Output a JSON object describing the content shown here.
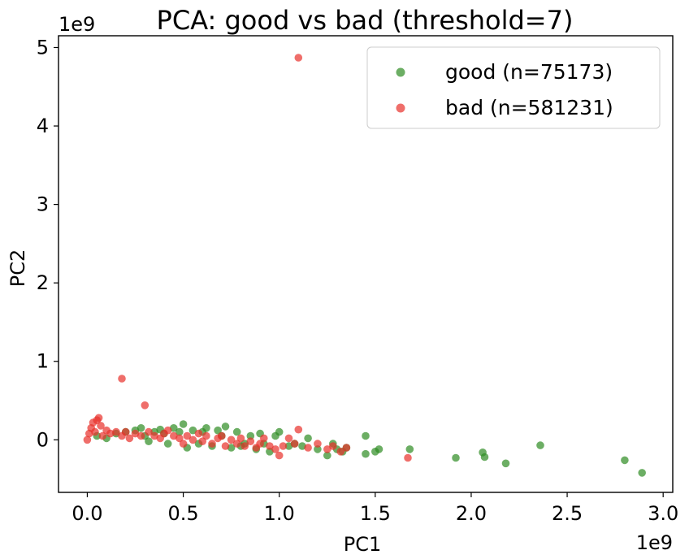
{
  "chart_data": {
    "type": "scatter",
    "title": "PCA: good vs bad (threshold=7)",
    "xlabel": "PC1",
    "ylabel": "PC2",
    "x_offset_label": "1e9",
    "y_offset_label": "1e9",
    "xlim": [
      -0.15,
      3.05
    ],
    "ylim": [
      -0.67,
      5.15
    ],
    "x_ticks": [
      0.0,
      0.5,
      1.0,
      1.5,
      2.0,
      2.5,
      3.0
    ],
    "x_tick_labels": [
      "0.0",
      "0.5",
      "1.0",
      "1.5",
      "2.0",
      "2.5",
      "3.0"
    ],
    "y_ticks": [
      0,
      1,
      2,
      3,
      4,
      5
    ],
    "y_tick_labels": [
      "0",
      "1",
      "2",
      "3",
      "4",
      "5"
    ],
    "grid": false,
    "legend_position": "top-right",
    "series": [
      {
        "name": "good (n=75173)",
        "color": "#2e8b22",
        "points": [
          [
            0.05,
            0.05
          ],
          [
            0.1,
            0.02
          ],
          [
            0.15,
            0.08
          ],
          [
            0.2,
            0.1
          ],
          [
            0.25,
            0.12
          ],
          [
            0.28,
            0.15
          ],
          [
            0.3,
            0.05
          ],
          [
            0.32,
            -0.02
          ],
          [
            0.35,
            0.1
          ],
          [
            0.38,
            0.13
          ],
          [
            0.4,
            0.08
          ],
          [
            0.42,
            -0.05
          ],
          [
            0.45,
            0.15
          ],
          [
            0.48,
            0.1
          ],
          [
            0.5,
            0.2
          ],
          [
            0.52,
            -0.1
          ],
          [
            0.55,
            0.12
          ],
          [
            0.58,
            -0.05
          ],
          [
            0.6,
            0.1
          ],
          [
            0.62,
            0.15
          ],
          [
            0.65,
            -0.08
          ],
          [
            0.68,
            0.12
          ],
          [
            0.7,
            0.05
          ],
          [
            0.72,
            0.17
          ],
          [
            0.75,
            -0.1
          ],
          [
            0.78,
            0.1
          ],
          [
            0.8,
            -0.08
          ],
          [
            0.82,
            -0.05
          ],
          [
            0.85,
            0.05
          ],
          [
            0.88,
            -0.12
          ],
          [
            0.9,
            0.08
          ],
          [
            0.92,
            -0.05
          ],
          [
            0.95,
            -0.15
          ],
          [
            0.98,
            0.05
          ],
          [
            1.0,
            0.1
          ],
          [
            1.05,
            -0.08
          ],
          [
            1.08,
            -0.05
          ],
          [
            1.12,
            -0.08
          ],
          [
            1.15,
            0.02
          ],
          [
            1.2,
            -0.12
          ],
          [
            1.25,
            -0.2
          ],
          [
            1.28,
            -0.05
          ],
          [
            1.3,
            -0.12
          ],
          [
            1.33,
            -0.15
          ],
          [
            1.35,
            -0.1
          ],
          [
            1.45,
            0.05
          ],
          [
            1.45,
            -0.18
          ],
          [
            1.5,
            -0.15
          ],
          [
            1.52,
            -0.12
          ],
          [
            1.68,
            -0.12
          ],
          [
            1.92,
            -0.23
          ],
          [
            2.06,
            -0.16
          ],
          [
            2.07,
            -0.22
          ],
          [
            2.18,
            -0.3
          ],
          [
            2.36,
            -0.07
          ],
          [
            2.8,
            -0.26
          ],
          [
            2.89,
            -0.42
          ]
        ]
      },
      {
        "name": "bad (n=581231)",
        "color": "#e8312b",
        "points": [
          [
            0.0,
            0.0
          ],
          [
            0.01,
            0.08
          ],
          [
            0.02,
            0.15
          ],
          [
            0.03,
            0.22
          ],
          [
            0.04,
            0.1
          ],
          [
            0.05,
            0.25
          ],
          [
            0.06,
            0.28
          ],
          [
            0.07,
            0.18
          ],
          [
            0.08,
            0.05
          ],
          [
            0.1,
            0.12
          ],
          [
            0.12,
            0.08
          ],
          [
            0.15,
            0.1
          ],
          [
            0.18,
            0.05
          ],
          [
            0.18,
            0.78
          ],
          [
            0.2,
            0.1
          ],
          [
            0.22,
            0.02
          ],
          [
            0.25,
            0.08
          ],
          [
            0.28,
            0.05
          ],
          [
            0.3,
            0.44
          ],
          [
            0.32,
            0.1
          ],
          [
            0.35,
            0.05
          ],
          [
            0.38,
            0.02
          ],
          [
            0.4,
            0.08
          ],
          [
            0.42,
            0.12
          ],
          [
            0.45,
            0.05
          ],
          [
            0.48,
            0.02
          ],
          [
            0.5,
            -0.05
          ],
          [
            0.52,
            0.05
          ],
          [
            0.55,
            0.0
          ],
          [
            0.58,
            0.08
          ],
          [
            0.6,
            -0.02
          ],
          [
            0.62,
            0.05
          ],
          [
            0.65,
            -0.05
          ],
          [
            0.68,
            0.02
          ],
          [
            0.7,
            0.05
          ],
          [
            0.72,
            -0.08
          ],
          [
            0.75,
            0.0
          ],
          [
            0.78,
            -0.05
          ],
          [
            0.8,
            0.02
          ],
          [
            0.82,
            -0.08
          ],
          [
            0.85,
            -0.02
          ],
          [
            0.88,
            -0.1
          ],
          [
            0.9,
            -0.05
          ],
          [
            0.92,
            0.02
          ],
          [
            0.95,
            -0.08
          ],
          [
            0.98,
            -0.12
          ],
          [
            1.0,
            -0.2
          ],
          [
            1.02,
            -0.08
          ],
          [
            1.05,
            0.02
          ],
          [
            1.08,
            -0.05
          ],
          [
            1.1,
            0.13
          ],
          [
            1.1,
            4.87
          ],
          [
            1.15,
            -0.1
          ],
          [
            1.2,
            -0.05
          ],
          [
            1.25,
            -0.12
          ],
          [
            1.28,
            -0.08
          ],
          [
            1.32,
            -0.15
          ],
          [
            1.35,
            -0.1
          ],
          [
            1.67,
            -0.23
          ]
        ]
      }
    ]
  }
}
